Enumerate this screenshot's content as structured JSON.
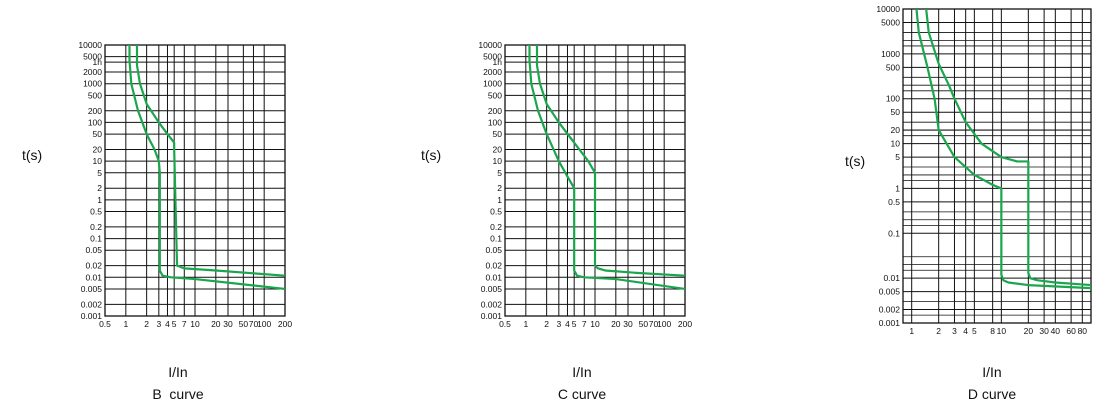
{
  "colors": {
    "curve": "#1aa64d",
    "grid": "#111111",
    "background": "#ffffff"
  },
  "chart_data": [
    {
      "type": "line",
      "ylabel": "t(s)",
      "xlabel": "I/In",
      "caption": "B  curve",
      "x_scale": "log",
      "y_scale": "log",
      "xlim": [
        0.5,
        200
      ],
      "ylim": [
        0.001,
        10000
      ],
      "x_ticks": [
        "0.5",
        "1",
        "2",
        "3",
        "4",
        "5",
        "7",
        "10",
        "20",
        "30",
        "50",
        "70",
        "100",
        "200"
      ],
      "y_ticks": [
        "10000",
        "5000",
        "1h",
        "2000",
        "1000",
        "500",
        "200",
        "100",
        "50",
        "20",
        "10",
        "5",
        "2",
        "1",
        "0.5",
        "0.2",
        "0.1",
        "0.05",
        "0.02",
        "0.01",
        "0.005",
        "0.002",
        "0.001"
      ],
      "grid": true,
      "series": [
        {
          "x": [
            1.13,
            1.13,
            1.2,
            1.5,
            2,
            2.6,
            3,
            3.1,
            3.1,
            3.4,
            4.5,
            10,
            200
          ],
          "y": [
            10000,
            4000,
            1000,
            200,
            50,
            20,
            10,
            5,
            0.015,
            0.011,
            0.01,
            0.009,
            0.005
          ]
        },
        {
          "x": [
            1.45,
            1.45,
            1.6,
            2,
            3,
            4,
            5,
            5,
            5.5,
            7,
            20,
            200
          ],
          "y": [
            10000,
            3000,
            1000,
            300,
            100,
            50,
            30,
            20,
            0.02,
            0.017,
            0.015,
            0.011
          ]
        }
      ]
    },
    {
      "type": "line",
      "ylabel": "t(s)",
      "xlabel": "I/In",
      "caption": "C curve",
      "x_scale": "log",
      "y_scale": "log",
      "xlim": [
        0.5,
        200
      ],
      "ylim": [
        0.001,
        10000
      ],
      "x_ticks": [
        "0.5",
        "1",
        "2",
        "3",
        "4",
        "5",
        "7",
        "10",
        "20",
        "30",
        "50",
        "70",
        "100",
        "200"
      ],
      "y_ticks": [
        "10000",
        "5000",
        "1h",
        "2000",
        "1000",
        "500",
        "200",
        "100",
        "50",
        "20",
        "10",
        "5",
        "2",
        "1",
        "0.5",
        "0.2",
        "0.1",
        "0.05",
        "0.02",
        "0.01",
        "0.005",
        "0.002",
        "0.001"
      ],
      "grid": true,
      "series": [
        {
          "x": [
            1.13,
            1.13,
            1.2,
            1.5,
            2,
            3,
            4,
            5,
            5,
            5.5,
            7,
            20,
            200
          ],
          "y": [
            10000,
            4000,
            1000,
            200,
            50,
            10,
            4,
            2,
            0.015,
            0.011,
            0.01,
            0.009,
            0.005
          ]
        },
        {
          "x": [
            1.45,
            1.45,
            1.6,
            2,
            3,
            5,
            8,
            10,
            10,
            11,
            14,
            40,
            200
          ],
          "y": [
            10000,
            3000,
            1000,
            300,
            100,
            30,
            10,
            5,
            0.02,
            0.017,
            0.015,
            0.013,
            0.011
          ]
        }
      ]
    },
    {
      "type": "line",
      "ylabel": "t(s)",
      "xlabel": "I/In",
      "caption": "D curve",
      "x_scale": "log",
      "y_scale": "log",
      "xlim": [
        0.8,
        100
      ],
      "ylim": [
        0.001,
        10000
      ],
      "x_ticks": [
        "1",
        "2",
        "3",
        "4",
        "5",
        "8",
        "10",
        "20",
        "30",
        "40",
        "60",
        "80"
      ],
      "y_ticks": [
        "10000",
        "5000",
        "1000",
        "500",
        "100",
        "50",
        "20",
        "10",
        "5",
        "1",
        "0.5",
        "0.1",
        "0.01",
        "0.005",
        "0.002",
        "0.001"
      ],
      "grid": true,
      "series": [
        {
          "x": [
            1.13,
            1.2,
            1.5,
            1.8,
            2,
            3,
            5,
            8,
            10,
            10,
            10.5,
            12,
            20,
            100
          ],
          "y": [
            10000,
            3000,
            500,
            100,
            20,
            5,
            2,
            1.2,
            1,
            0.012,
            0.009,
            0.008,
            0.007,
            0.006
          ]
        },
        {
          "x": [
            1.45,
            1.55,
            2,
            2.6,
            3,
            4,
            6,
            10,
            15,
            20,
            20,
            21,
            25,
            40,
            100
          ],
          "y": [
            10000,
            3000,
            600,
            200,
            100,
            30,
            10,
            5,
            4,
            4,
            0.013,
            0.01,
            0.009,
            0.008,
            0.007
          ]
        }
      ]
    }
  ]
}
